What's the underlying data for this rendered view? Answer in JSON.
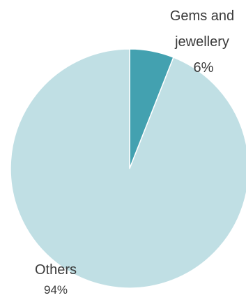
{
  "chart_data": {
    "type": "pie",
    "slices": [
      {
        "label_lines": [
          "Gems and",
          "jewellery"
        ],
        "value": 6,
        "value_label": "6%",
        "color": "#43a1b0"
      },
      {
        "label_lines": [
          "Others"
        ],
        "value": 94,
        "value_label": "94%",
        "color": "#c0dfe4"
      }
    ],
    "start_angle": "12 o'clock",
    "direction": "clockwise",
    "legend": "none"
  }
}
